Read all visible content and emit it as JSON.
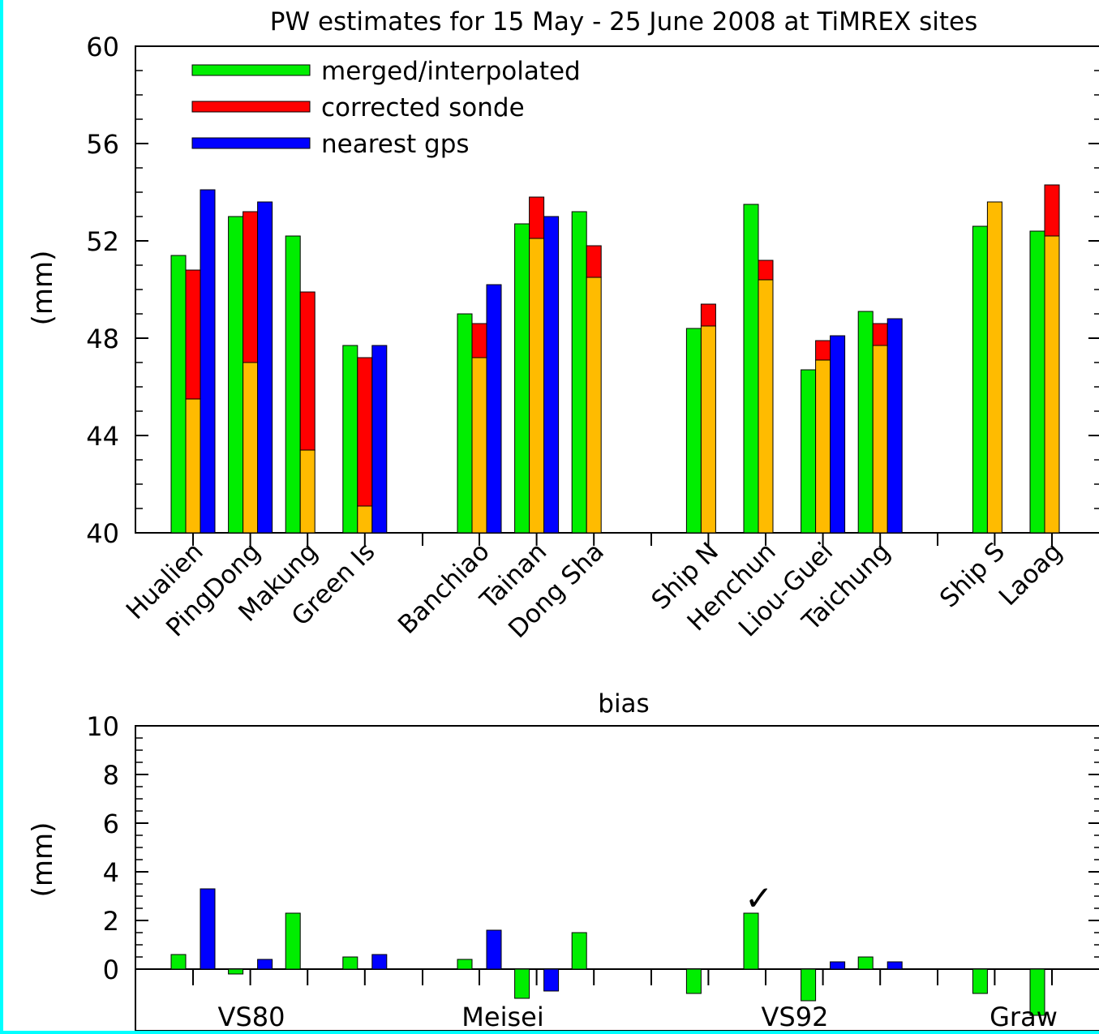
{
  "chart_data": [
    {
      "type": "bar",
      "title": "PW estimates for 15 May - 25 June 2008 at TiMREX sites",
      "xlabel": "",
      "ylabel": "(mm)",
      "ylim": [
        40,
        60
      ],
      "yticks": [
        40,
        44,
        48,
        52,
        56,
        60
      ],
      "stacked_sonde": true,
      "legend": {
        "placement": "top-left",
        "entries": [
          {
            "name": "merged/interpolated",
            "color": "#00ee00"
          },
          {
            "name": "corrected sonde",
            "color": "#ff0000"
          },
          {
            "name": "nearest gps",
            "color": "#0000ff"
          }
        ]
      },
      "categories": [
        "Hualien",
        "PingDong",
        "Makung",
        "Green Is",
        "Banchiao",
        "Tainan",
        "Dong Sha",
        "Ship N",
        "Henchun",
        "Liou-Guei",
        "Taichung",
        "Ship S",
        "Laoag"
      ],
      "series": [
        {
          "name": "merged/interpolated",
          "color": "#00ee00",
          "values": [
            51.4,
            53.0,
            52.2,
            47.7,
            49.0,
            52.7,
            53.2,
            48.4,
            53.5,
            46.7,
            49.1,
            52.6,
            52.4
          ]
        },
        {
          "name": "corrected sonde",
          "color": "#ff0000",
          "base_color": "#ffbb00",
          "base_values": [
            45.5,
            47.0,
            43.4,
            41.1,
            47.2,
            52.1,
            50.5,
            48.5,
            50.4,
            47.1,
            47.7,
            53.6,
            52.2
          ],
          "values": [
            50.8,
            53.2,
            49.9,
            47.2,
            48.6,
            53.8,
            51.8,
            49.4,
            51.2,
            47.9,
            48.6,
            53.6,
            54.3
          ]
        },
        {
          "name": "nearest gps",
          "color": "#0000ff",
          "values": [
            54.1,
            53.6,
            null,
            47.7,
            50.2,
            53.0,
            null,
            null,
            null,
            48.1,
            48.8,
            null,
            null
          ]
        }
      ]
    },
    {
      "type": "bar",
      "title": "bias",
      "xlabel": "",
      "ylabel": "(mm)",
      "ylim": [
        -2,
        10
      ],
      "yticks": [
        0,
        2,
        4,
        6,
        8,
        10
      ],
      "groups": [
        "VS80",
        "Meisei",
        "VS92",
        "Graw"
      ],
      "categories": [
        "Hualien",
        "PingDong",
        "Makung",
        "Green Is",
        "Banchiao",
        "Tainan",
        "Dong Sha",
        "Ship N",
        "Henchun",
        "Liou-Guei",
        "Taichung",
        "Ship S",
        "Laoag"
      ],
      "series": [
        {
          "name": "merged/interpolated",
          "color": "#00ee00",
          "values": [
            0.6,
            -0.2,
            2.3,
            0.5,
            0.4,
            -1.2,
            1.5,
            -1.0,
            2.3,
            -1.3,
            0.5,
            -1.0,
            -1.9
          ]
        },
        {
          "name": "nearest gps",
          "color": "#0000ff",
          "values": [
            3.3,
            0.4,
            null,
            0.6,
            1.6,
            -0.9,
            null,
            null,
            null,
            0.3,
            0.3,
            null,
            null
          ]
        }
      ]
    }
  ],
  "annotation": {
    "mark": "✓",
    "color": "#ee0000"
  }
}
